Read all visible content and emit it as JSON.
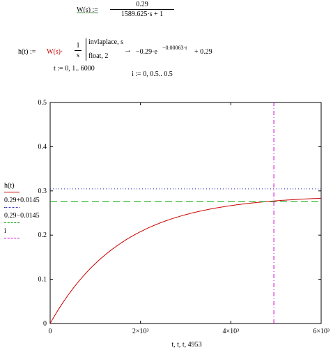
{
  "worksheet": {
    "w_def": {
      "lhs": "W(s) :=",
      "numerator": "0.29",
      "denominator": "1589.625·s + 1"
    },
    "h_def": {
      "lhs": "h(t) :=",
      "W": "W(s)·",
      "frac_num": "1",
      "frac_den": "s",
      "directive1": "invlaplace, s",
      "directive2": "float, 2",
      "arrow": "→",
      "result_a": "−0.29·e",
      "result_exp": "−0.00063·t",
      "result_b": "+ 0.29"
    },
    "t_range": "t := 0, 1.. 6000",
    "i_range": "i := 0, 0.5.. 0.5"
  },
  "chart_data": {
    "type": "line",
    "xlim": [
      0,
      6000
    ],
    "ylim": [
      0,
      0.5
    ],
    "x_ticks": [
      "0",
      "2×10³",
      "4×10³",
      "6×10³"
    ],
    "x_tick_values": [
      0,
      2000,
      4000,
      6000
    ],
    "y_ticks": [
      "0",
      "0.1",
      "0.2",
      "0.3",
      "0.4",
      "0.5"
    ],
    "y_tick_values": [
      0,
      0.1,
      0.2,
      0.3,
      0.4,
      0.5
    ],
    "xlabel": "t, t, t, 4953",
    "legend": {
      "h": "h(t)",
      "upper": "0.29+0.0145",
      "lower": "0.29−0.0145",
      "i": "i"
    },
    "series": [
      {
        "name": "h(t)",
        "color": "#cc0000",
        "style": "solid",
        "formula": "0.29*(1-exp(-0.00063*t))",
        "x": [
          0,
          500,
          1000,
          1500,
          2000,
          2500,
          3000,
          3500,
          4000,
          4500,
          5000,
          5500,
          6000
        ],
        "y": [
          0,
          0.0782,
          0.1353,
          0.177,
          0.2075,
          0.2297,
          0.246,
          0.2578,
          0.2665,
          0.2728,
          0.2774,
          0.2808,
          0.2832
        ]
      },
      {
        "name": "0.29+0.0145",
        "color": "#2020c0",
        "style": "dotted",
        "x": [
          0,
          6000
        ],
        "y": [
          0.3045,
          0.3045
        ]
      },
      {
        "name": "0.29−0.0145",
        "color": "#00a000",
        "style": "dashed",
        "x": [
          0,
          6000
        ],
        "y": [
          0.2755,
          0.2755
        ]
      },
      {
        "name": "i",
        "color": "#cc00cc",
        "style": "dashdot",
        "x": [
          4953,
          4953
        ],
        "y": [
          0,
          0.5
        ]
      }
    ]
  }
}
